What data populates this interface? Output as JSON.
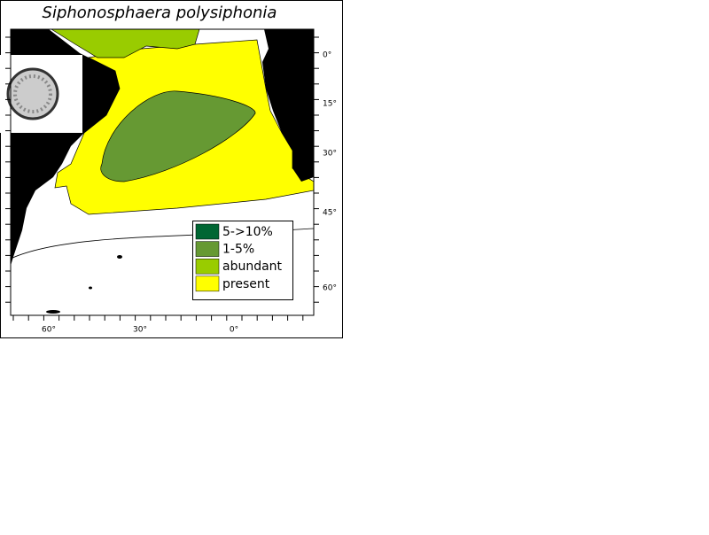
{
  "title": "Siphonosphaera polysiphonia",
  "legend": [
    {
      "label": "5->10%",
      "color": "#006633"
    },
    {
      "label": "1-5%",
      "color": "#669933"
    },
    {
      "label": "abundant",
      "color": "#99cc00"
    },
    {
      "label": "present",
      "color": "#ffff00"
    }
  ],
  "lat_labels": [
    "0°",
    "15°",
    "30°",
    "45°",
    "60°"
  ],
  "lon_labels": [
    "60°",
    "30°",
    "0°"
  ]
}
